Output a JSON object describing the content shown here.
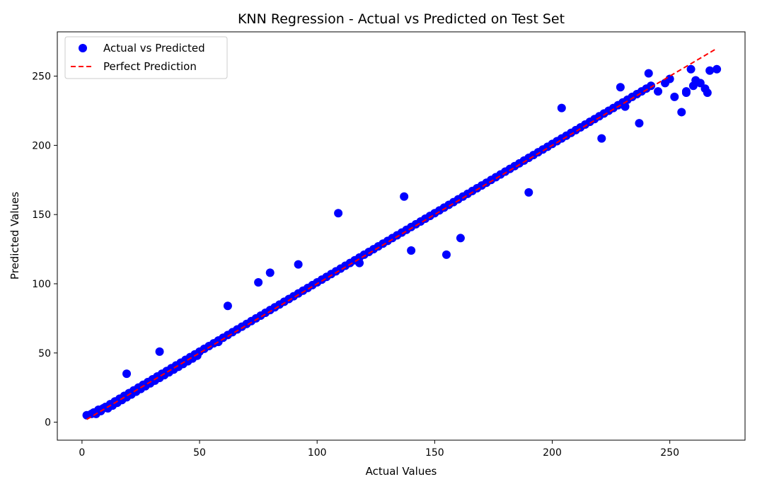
{
  "chart_data": {
    "type": "scatter",
    "title": "KNN Regression - Actual vs Predicted on Test Set",
    "xlabel": "Actual Values",
    "ylabel": "Predicted Values",
    "xlim": [
      -10.5,
      282
    ],
    "ylim": [
      -13,
      282
    ],
    "xticks": [
      0,
      50,
      100,
      150,
      200,
      250
    ],
    "yticks": [
      0,
      50,
      100,
      150,
      200,
      250
    ],
    "grid": false,
    "legend_position": "top-left",
    "series": [
      {
        "name": "Actual vs Predicted",
        "kind": "scatter",
        "color": "#0000ff",
        "x": [
          2,
          4,
          5,
          6,
          7,
          8,
          9,
          10,
          11,
          12,
          13,
          14,
          15,
          16,
          17,
          18,
          19,
          20,
          21,
          22,
          23,
          24,
          25,
          26,
          27,
          28,
          29,
          30,
          31,
          32,
          33,
          34,
          35,
          36,
          37,
          38,
          39,
          40,
          41,
          42,
          43,
          44,
          45,
          46,
          47,
          48,
          49,
          50,
          52,
          54,
          56,
          58,
          60,
          62,
          64,
          66,
          68,
          70,
          72,
          74,
          76,
          78,
          80,
          82,
          84,
          86,
          88,
          90,
          92,
          94,
          96,
          98,
          100,
          102,
          104,
          106,
          108,
          110,
          112,
          114,
          116,
          118,
          120,
          122,
          124,
          126,
          128,
          130,
          132,
          134,
          136,
          138,
          140,
          142,
          144,
          146,
          148,
          150,
          152,
          154,
          156,
          158,
          160,
          162,
          164,
          166,
          168,
          170,
          172,
          174,
          176,
          178,
          180,
          182,
          184,
          186,
          188,
          190,
          192,
          194,
          196,
          198,
          200,
          202,
          204,
          206,
          208,
          210,
          212,
          214,
          216,
          218,
          220,
          222,
          224,
          226,
          228,
          230,
          232,
          234,
          236,
          238,
          240,
          242,
          245,
          248,
          250,
          252,
          255,
          257,
          259,
          261,
          263,
          265,
          267,
          270,
          19,
          33,
          58,
          62,
          75,
          80,
          92,
          109,
          118,
          137,
          140,
          155,
          161,
          190,
          204,
          221,
          229,
          241,
          257,
          260,
          266,
          231,
          237
        ],
        "y": [
          5,
          6,
          7,
          6,
          9,
          8,
          10,
          11,
          10,
          13,
          12,
          15,
          14,
          17,
          16,
          19,
          18,
          21,
          20,
          23,
          22,
          25,
          24,
          27,
          26,
          29,
          28,
          31,
          30,
          33,
          32,
          35,
          34,
          37,
          36,
          39,
          38,
          41,
          40,
          43,
          42,
          45,
          44,
          47,
          46,
          49,
          48,
          51,
          53,
          55,
          57,
          59,
          61,
          63,
          65,
          67,
          69,
          71,
          73,
          75,
          77,
          79,
          81,
          83,
          85,
          87,
          89,
          91,
          93,
          95,
          97,
          99,
          101,
          103,
          105,
          107,
          109,
          111,
          113,
          115,
          117,
          119,
          121,
          123,
          125,
          127,
          129,
          131,
          133,
          135,
          137,
          139,
          141,
          143,
          145,
          147,
          149,
          151,
          153,
          155,
          157,
          159,
          161,
          163,
          165,
          167,
          169,
          171,
          173,
          175,
          177,
          179,
          181,
          183,
          185,
          187,
          189,
          191,
          193,
          195,
          197,
          199,
          201,
          203,
          205,
          207,
          209,
          211,
          213,
          215,
          217,
          219,
          221,
          223,
          225,
          227,
          229,
          231,
          233,
          235,
          237,
          239,
          241,
          243,
          239,
          245,
          248,
          235,
          224,
          239,
          255,
          247,
          245,
          241,
          254,
          255,
          35,
          51,
          58,
          84,
          101,
          108,
          114,
          151,
          115,
          163,
          124,
          121,
          133,
          166,
          227,
          205,
          242,
          252,
          238,
          243,
          238,
          228,
          216
        ]
      },
      {
        "name": "Perfect Prediction",
        "kind": "line",
        "style": "dashed",
        "color": "#ff0000",
        "x": [
          2,
          270
        ],
        "y": [
          2,
          270
        ]
      }
    ]
  }
}
